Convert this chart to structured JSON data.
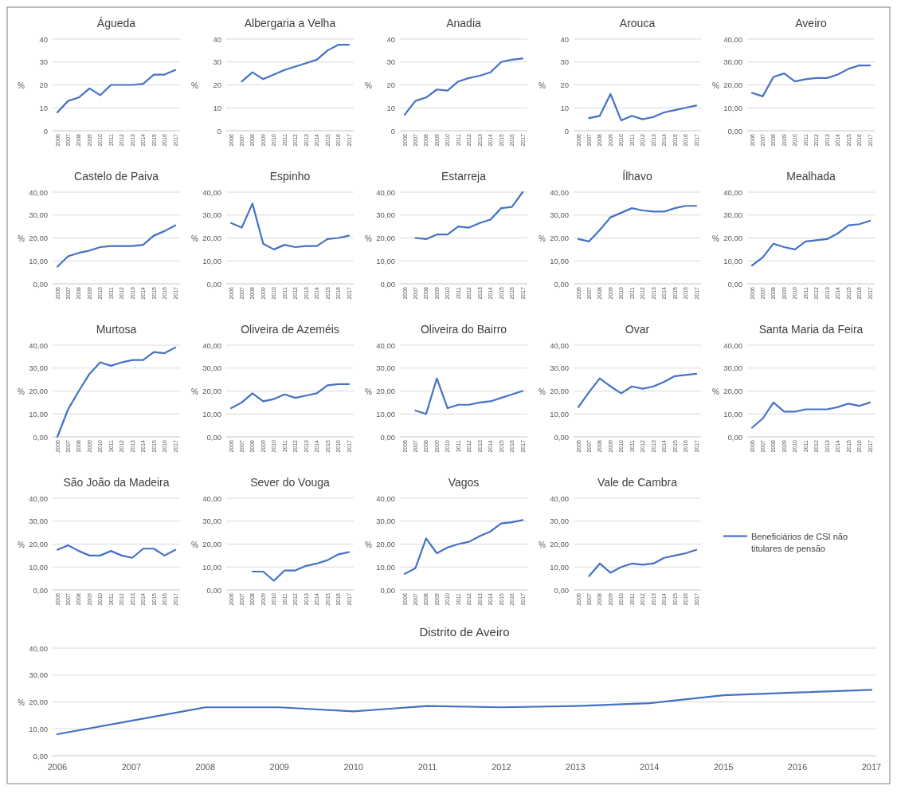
{
  "chart_data": [
    {
      "type": "line",
      "title": "Águeda",
      "ylabel": "%",
      "categories": [
        "2006",
        "2007",
        "2008",
        "2009",
        "2010",
        "2011",
        "2012",
        "2013",
        "2014",
        "2015",
        "2016",
        "2017"
      ],
      "series": [
        {
          "color": "#4472c4",
          "values": [
            8,
            13,
            14.5,
            18.5,
            15.5,
            20,
            20,
            20,
            20.5,
            24.5,
            24.5,
            26.5
          ]
        }
      ],
      "ylim": [
        0,
        40
      ],
      "yticks": [
        0,
        10,
        20,
        30,
        40
      ],
      "grid": "y"
    },
    {
      "type": "line",
      "title": "Albergaria a Velha",
      "ylabel": "%",
      "categories": [
        "2006",
        "2007",
        "2008",
        "2009",
        "2010",
        "2011",
        "2012",
        "2013",
        "2014",
        "2015",
        "2016",
        "2017"
      ],
      "series": [
        {
          "color": "#4472c4",
          "values": [
            null,
            21.5,
            25.5,
            22.5,
            24.5,
            26.5,
            28,
            29.5,
            31,
            35,
            37.5,
            37.5
          ]
        }
      ],
      "ylim": [
        0,
        40
      ],
      "yticks": [
        0,
        10,
        20,
        30,
        40
      ],
      "grid": "y"
    },
    {
      "type": "line",
      "title": "Anadia",
      "ylabel": "%",
      "categories": [
        "2006",
        "2007",
        "2008",
        "2009",
        "2010",
        "2011",
        "2012",
        "2013",
        "2014",
        "2015",
        "2016",
        "2017"
      ],
      "series": [
        {
          "color": "#4472c4",
          "values": [
            7,
            13,
            14.5,
            18,
            17.5,
            21.5,
            23,
            24,
            25.5,
            30,
            31,
            31.5
          ]
        }
      ],
      "ylim": [
        0,
        40
      ],
      "yticks": [
        0,
        10,
        20,
        30,
        40
      ],
      "grid": "y"
    },
    {
      "type": "line",
      "title": "Arouca",
      "ylabel": "%",
      "categories": [
        "2006",
        "2007",
        "2008",
        "2009",
        "2010",
        "2011",
        "2012",
        "2013",
        "2014",
        "2015",
        "2016",
        "2017"
      ],
      "series": [
        {
          "color": "#4472c4",
          "values": [
            null,
            5.5,
            6.5,
            16,
            4.5,
            6.5,
            5,
            6,
            8,
            9,
            10,
            11
          ]
        }
      ],
      "ylim": [
        0,
        40
      ],
      "yticks": [
        0,
        10,
        20,
        30,
        40
      ],
      "grid": "y"
    },
    {
      "type": "line",
      "title": "Aveiro",
      "ylabel": "%",
      "categories": [
        "2006",
        "2007",
        "2008",
        "2009",
        "2010",
        "2011",
        "2012",
        "2013",
        "2014",
        "2015",
        "2016",
        "2017"
      ],
      "series": [
        {
          "color": "#4472c4",
          "values": [
            16.5,
            15,
            23.5,
            25,
            21.5,
            22.5,
            23,
            23,
            24.5,
            27,
            28.5,
            28.5
          ]
        }
      ],
      "ylim": [
        0,
        40
      ],
      "yticks": [
        {
          "value": 0,
          "label": "0,00"
        },
        {
          "value": 10,
          "label": "10,00"
        },
        {
          "value": 20,
          "label": "20,00"
        },
        {
          "value": 30,
          "label": "30,00"
        },
        {
          "value": 40,
          "label": "40,00"
        }
      ],
      "grid": "y"
    },
    {
      "type": "line",
      "title": "Castelo de Paiva",
      "ylabel": "%",
      "categories": [
        "2006",
        "2007",
        "2008",
        "2009",
        "2010",
        "2011",
        "2012",
        "2013",
        "2014",
        "2015",
        "2016",
        "2017"
      ],
      "series": [
        {
          "color": "#4472c4",
          "values": [
            7.5,
            12,
            13.5,
            14.5,
            16,
            16.5,
            16.5,
            16.5,
            17,
            21,
            23,
            25.5
          ]
        }
      ],
      "ylim": [
        0,
        40
      ],
      "yticks": [
        {
          "value": 0,
          "label": "0,00"
        },
        {
          "value": 10,
          "label": "10,00"
        },
        {
          "value": 20,
          "label": "20,00"
        },
        {
          "value": 30,
          "label": "30,00"
        },
        {
          "value": 40,
          "label": "40,00"
        }
      ],
      "grid": "y"
    },
    {
      "type": "line",
      "title": "Espinho",
      "ylabel": "%",
      "categories": [
        "2006",
        "2007",
        "2008",
        "2009",
        "2010",
        "2011",
        "2012",
        "2013",
        "2014",
        "2015",
        "2016",
        "2017"
      ],
      "series": [
        {
          "color": "#4472c4",
          "values": [
            26.5,
            24.5,
            35,
            17.5,
            15,
            17,
            16,
            16.5,
            16.5,
            19.5,
            20,
            21
          ]
        }
      ],
      "ylim": [
        0,
        40
      ],
      "yticks": [
        {
          "value": 0,
          "label": "0,00"
        },
        {
          "value": 10,
          "label": "10,00"
        },
        {
          "value": 20,
          "label": "20,00"
        },
        {
          "value": 30,
          "label": "30,00"
        },
        {
          "value": 40,
          "label": "40,00"
        }
      ],
      "grid": "y"
    },
    {
      "type": "line",
      "title": "Estarreja",
      "ylabel": "%",
      "categories": [
        "2006",
        "2007",
        "2008",
        "2009",
        "2010",
        "2011",
        "2012",
        "2013",
        "2014",
        "2015",
        "2016",
        "2017"
      ],
      "series": [
        {
          "color": "#4472c4",
          "values": [
            null,
            20,
            19.5,
            21.5,
            21.5,
            25,
            24.5,
            26.5,
            28,
            33,
            33.5,
            40
          ]
        }
      ],
      "ylim": [
        0,
        40
      ],
      "yticks": [
        {
          "value": 0,
          "label": "0,00"
        },
        {
          "value": 10,
          "label": "10,00"
        },
        {
          "value": 20,
          "label": "20,00"
        },
        {
          "value": 30,
          "label": "30,00"
        },
        {
          "value": 40,
          "label": "40,00"
        }
      ],
      "grid": "y"
    },
    {
      "type": "line",
      "title": "Ílhavo",
      "ylabel": "%",
      "categories": [
        "2006",
        "2007",
        "2008",
        "2009",
        "2010",
        "2011",
        "2012",
        "2013",
        "2014",
        "2015",
        "2016",
        "2017"
      ],
      "series": [
        {
          "color": "#4472c4",
          "values": [
            19.5,
            18.5,
            23.5,
            29,
            31,
            33,
            32,
            31.5,
            31.5,
            33,
            34,
            34
          ]
        }
      ],
      "ylim": [
        0,
        40
      ],
      "yticks": [
        {
          "value": 0,
          "label": "0,00"
        },
        {
          "value": 10,
          "label": "10,00"
        },
        {
          "value": 20,
          "label": "20,00"
        },
        {
          "value": 30,
          "label": "30,00"
        },
        {
          "value": 40,
          "label": "40,00"
        }
      ],
      "grid": "y"
    },
    {
      "type": "line",
      "title": "Mealhada",
      "ylabel": "%",
      "categories": [
        "2006",
        "2007",
        "2008",
        "2009",
        "2010",
        "2011",
        "2012",
        "2013",
        "2014",
        "2015",
        "2016",
        "2017"
      ],
      "series": [
        {
          "color": "#4472c4",
          "values": [
            8,
            11.5,
            17.5,
            16,
            15,
            18.5,
            19,
            19.5,
            22,
            25.5,
            26,
            27.5
          ]
        }
      ],
      "ylim": [
        0,
        40
      ],
      "yticks": [
        {
          "value": 0,
          "label": "0,00"
        },
        {
          "value": 10,
          "label": "10,00"
        },
        {
          "value": 20,
          "label": "20,00"
        },
        {
          "value": 30,
          "label": "30,00"
        },
        {
          "value": 40,
          "label": "40,00"
        }
      ],
      "grid": "y"
    },
    {
      "type": "line",
      "title": "Murtosa",
      "ylabel": "%",
      "categories": [
        "2006",
        "2007",
        "2008",
        "2009",
        "2010",
        "2011",
        "2012",
        "2013",
        "2014",
        "2015",
        "2016",
        "2017"
      ],
      "series": [
        {
          "color": "#4472c4",
          "values": [
            0,
            12,
            20,
            27.5,
            32.5,
            31,
            32.5,
            33.5,
            33.5,
            37,
            36.5,
            39
          ]
        }
      ],
      "ylim": [
        0,
        40
      ],
      "yticks": [
        {
          "value": 0,
          "label": "0,00"
        },
        {
          "value": 10,
          "label": "10,00"
        },
        {
          "value": 20,
          "label": "20,00"
        },
        {
          "value": 30,
          "label": "30,00"
        },
        {
          "value": 40,
          "label": "40,00"
        }
      ],
      "grid": "y"
    },
    {
      "type": "line",
      "title": "Oliveira de Azeméis",
      "ylabel": "%",
      "categories": [
        "2006",
        "2007",
        "2008",
        "2009",
        "2010",
        "2011",
        "2012",
        "2013",
        "2014",
        "2015",
        "2016",
        "2017"
      ],
      "series": [
        {
          "color": "#4472c4",
          "values": [
            12.5,
            15,
            19,
            15.5,
            16.5,
            18.5,
            17,
            18,
            19,
            22.5,
            23,
            23
          ]
        }
      ],
      "ylim": [
        0,
        40
      ],
      "yticks": [
        {
          "value": 0,
          "label": "0,00"
        },
        {
          "value": 10,
          "label": "10,00"
        },
        {
          "value": 20,
          "label": "20,00"
        },
        {
          "value": 30,
          "label": "30,00"
        },
        {
          "value": 40,
          "label": "40,00"
        }
      ],
      "grid": "y"
    },
    {
      "type": "line",
      "title": "Oliveira do Bairro",
      "ylabel": "%",
      "categories": [
        "2006",
        "2007",
        "2008",
        "2009",
        "2010",
        "2011",
        "2012",
        "2013",
        "2014",
        "2015",
        "2016",
        "2017"
      ],
      "series": [
        {
          "color": "#4472c4",
          "values": [
            null,
            11.5,
            10,
            25.5,
            12.5,
            14,
            14,
            15,
            15.5,
            17,
            18.5,
            20
          ]
        }
      ],
      "ylim": [
        0,
        40
      ],
      "yticks": [
        {
          "value": 0,
          "label": "0,00"
        },
        {
          "value": 10,
          "label": "10,00"
        },
        {
          "value": 20,
          "label": "20,00"
        },
        {
          "value": 30,
          "label": "30,00"
        },
        {
          "value": 40,
          "label": "40,00"
        }
      ],
      "grid": "y"
    },
    {
      "type": "line",
      "title": "Ovar",
      "ylabel": "%",
      "categories": [
        "2006",
        "2007",
        "2008",
        "2009",
        "2010",
        "2011",
        "2012",
        "2013",
        "2014",
        "2015",
        "2016",
        "2017"
      ],
      "series": [
        {
          "color": "#4472c4",
          "values": [
            13,
            19.5,
            25.5,
            22,
            19,
            22,
            21,
            22,
            24,
            26.5,
            27,
            27.5
          ]
        }
      ],
      "ylim": [
        0,
        40
      ],
      "yticks": [
        {
          "value": 0,
          "label": "0,00"
        },
        {
          "value": 10,
          "label": "10,00"
        },
        {
          "value": 20,
          "label": "20,00"
        },
        {
          "value": 30,
          "label": "30,00"
        },
        {
          "value": 40,
          "label": "40,00"
        }
      ],
      "grid": "y"
    },
    {
      "type": "line",
      "title": "Santa Maria da Feira",
      "ylabel": "%",
      "categories": [
        "2006",
        "2007",
        "2008",
        "2009",
        "2010",
        "2011",
        "2012",
        "2013",
        "2014",
        "2015",
        "2016",
        "2017"
      ],
      "series": [
        {
          "color": "#4472c4",
          "values": [
            4,
            8,
            15,
            11,
            11,
            12,
            12,
            12,
            13,
            14.5,
            13.5,
            15
          ]
        }
      ],
      "ylim": [
        0,
        40
      ],
      "yticks": [
        {
          "value": 0,
          "label": "0,00"
        },
        {
          "value": 10,
          "label": "10,00"
        },
        {
          "value": 20,
          "label": "20,00"
        },
        {
          "value": 30,
          "label": "30,00"
        },
        {
          "value": 40,
          "label": "40,00"
        }
      ],
      "grid": "y"
    },
    {
      "type": "line",
      "title": "São João da Madeira",
      "ylabel": "%",
      "categories": [
        "2006",
        "2007",
        "2008",
        "2009",
        "2010",
        "2011",
        "2012",
        "2013",
        "2014",
        "2015",
        "2016",
        "2017"
      ],
      "series": [
        {
          "color": "#4472c4",
          "values": [
            17.5,
            19.5,
            17,
            15,
            15,
            17,
            15,
            14,
            18,
            18,
            15,
            17.5
          ]
        }
      ],
      "ylim": [
        0,
        40
      ],
      "yticks": [
        {
          "value": 0,
          "label": "0,00"
        },
        {
          "value": 10,
          "label": "10,00"
        },
        {
          "value": 20,
          "label": "20,00"
        },
        {
          "value": 30,
          "label": "30,00"
        },
        {
          "value": 40,
          "label": "40,00"
        }
      ],
      "grid": "y"
    },
    {
      "type": "line",
      "title": "Sever do Vouga",
      "ylabel": "%",
      "categories": [
        "2006",
        "2007",
        "2008",
        "2009",
        "2010",
        "2011",
        "2012",
        "2013",
        "2014",
        "2015",
        "2016",
        "2017"
      ],
      "series": [
        {
          "color": "#4472c4",
          "values": [
            null,
            null,
            8,
            8,
            4,
            8.5,
            8.5,
            10.5,
            11.5,
            13,
            15.5,
            16.5
          ]
        }
      ],
      "ylim": [
        0,
        40
      ],
      "yticks": [
        {
          "value": 0,
          "label": "0,00"
        },
        {
          "value": 10,
          "label": "10,00"
        },
        {
          "value": 20,
          "label": "20,00"
        },
        {
          "value": 30,
          "label": "30,00"
        },
        {
          "value": 40,
          "label": "40,00"
        }
      ],
      "grid": "y"
    },
    {
      "type": "line",
      "title": "Vagos",
      "ylabel": "%",
      "categories": [
        "2006",
        "2007",
        "2008",
        "2009",
        "2010",
        "2011",
        "2012",
        "2013",
        "2014",
        "2015",
        "2016",
        "2017"
      ],
      "series": [
        {
          "color": "#4472c4",
          "values": [
            7,
            9.5,
            22.5,
            16,
            18.5,
            20,
            21,
            23.5,
            25.5,
            29,
            29.5,
            30.5
          ]
        }
      ],
      "ylim": [
        0,
        40
      ],
      "yticks": [
        {
          "value": 0,
          "label": "0,00"
        },
        {
          "value": 10,
          "label": "10,00"
        },
        {
          "value": 20,
          "label": "20,00"
        },
        {
          "value": 30,
          "label": "30,00"
        },
        {
          "value": 40,
          "label": "40,00"
        }
      ],
      "grid": "y"
    },
    {
      "type": "line",
      "title": "Vale de Cambra",
      "ylabel": "%",
      "categories": [
        "2006",
        "2007",
        "2008",
        "2009",
        "2010",
        "2011",
        "2012",
        "2013",
        "2014",
        "2015",
        "2016",
        "2017"
      ],
      "series": [
        {
          "name": "Beneficiários de CSI não titulares de pensão",
          "color": "#4472c4",
          "values": [
            null,
            6,
            11.5,
            7.5,
            10,
            11.5,
            11,
            11.5,
            14,
            15,
            16,
            17.5
          ]
        }
      ],
      "ylim": [
        0,
        40
      ],
      "yticks": [
        {
          "value": 0,
          "label": "0,00"
        },
        {
          "value": 10,
          "label": "10,00"
        },
        {
          "value": 20,
          "label": "20,00"
        },
        {
          "value": 30,
          "label": "30,00"
        },
        {
          "value": 40,
          "label": "40,00"
        }
      ],
      "grid": "y",
      "legend": "right"
    },
    {
      "type": "line",
      "title": "Distrito de Aveiro",
      "ylabel": "%",
      "categories": [
        "2006",
        "2007",
        "2008",
        "2009",
        "2010",
        "2011",
        "2012",
        "2013",
        "2014",
        "2015",
        "2016",
        "2017"
      ],
      "series": [
        {
          "color": "#4472c4",
          "values": [
            8,
            13,
            18,
            18,
            16.5,
            18.5,
            18,
            18.5,
            19.5,
            22.5,
            23.5,
            24.5
          ]
        }
      ],
      "ylim": [
        0,
        40
      ],
      "yticks": [
        {
          "value": 0,
          "label": "0,00"
        },
        {
          "value": 10,
          "label": "10,00"
        },
        {
          "value": 20,
          "label": "20,00"
        },
        {
          "value": 30,
          "label": "30,00"
        },
        {
          "value": 40,
          "label": "40,00"
        }
      ],
      "grid": "y"
    }
  ]
}
